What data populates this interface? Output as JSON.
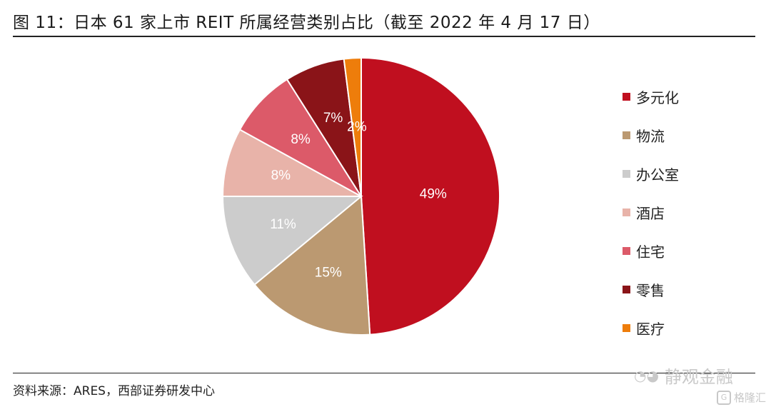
{
  "header": {
    "title": "图 11：日本 61 家上市 REIT 所属经营类别占比（截至 2022 年 4 月 17 日）"
  },
  "footer": {
    "source": "资料来源：ARES，西部证券研发中心"
  },
  "watermark": {
    "text": "静观金融",
    "secondary": "格隆汇"
  },
  "chart_data": {
    "type": "pie",
    "legend_position": "right",
    "start_angle": "12 o'clock, clockwise",
    "slices": [
      {
        "label": "多元化",
        "value": 49,
        "value_label": "49%",
        "color": "#c00f1f"
      },
      {
        "label": "物流",
        "value": 15,
        "value_label": "15%",
        "color": "#bb9971"
      },
      {
        "label": "办公室",
        "value": 11,
        "value_label": "11%",
        "color": "#cccccc"
      },
      {
        "label": "酒店",
        "value": 8,
        "value_label": "8%",
        "color": "#e8b3a9"
      },
      {
        "label": "住宅",
        "value": 8,
        "value_label": "8%",
        "color": "#dc5a69"
      },
      {
        "label": "零售",
        "value": 7,
        "value_label": "7%",
        "color": "#8a1418"
      },
      {
        "label": "医疗",
        "value": 2,
        "value_label": "2%",
        "color": "#ee7d0b"
      }
    ]
  }
}
